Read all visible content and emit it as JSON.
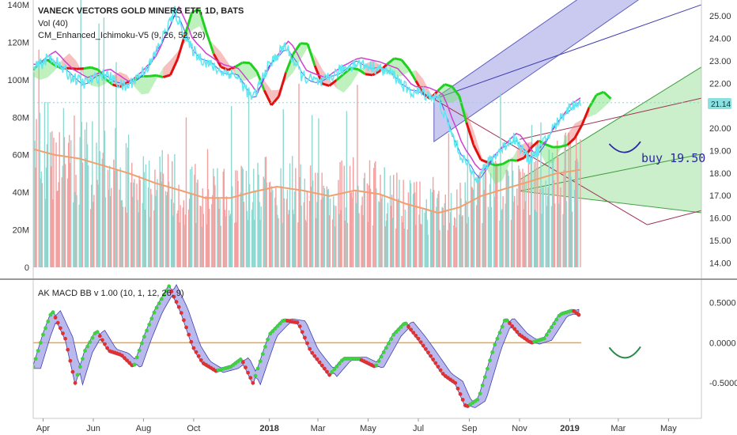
{
  "header": {
    "title": "VANECK VECTORS GOLD MINERS ETF, 1D, BATS",
    "volume_label": "Vol (40)",
    "ichimoku_label": "CM_Enhanced_Ichimoku-V5 (9, 26, 52, 26)",
    "macd_label": "AK MACD BB v 1.00 (10, 1, 12, 26, 9)"
  },
  "annotation": {
    "buy_text": "buy 19.50"
  },
  "last_price_label": "21.14",
  "colors": {
    "volume_red": "#f4a0a0",
    "volume_teal": "#8fd9d2",
    "price_line": "#5ee8f0",
    "vol_ma": "#f0a070",
    "cloud_red": "#f07070",
    "cloud_green": "#70e070",
    "channel_blue": "#b8b8ec",
    "channel_green": "#bdebbd",
    "macd_band": "#a8a8e8",
    "zero_line": "#f4a040",
    "drawing_green": "#2a8a4a"
  },
  "chart_data": [
    {
      "type": "line",
      "title": "VANECK VECTORS GOLD MINERS ETF, 1D, BATS",
      "x_axis": {
        "type": "date",
        "range": [
          "2017-03-20",
          "2019-06-10"
        ],
        "tick_labels": [
          "Apr",
          "Jun",
          "Aug",
          "Oct",
          "2018",
          "Mar",
          "May",
          "Jul",
          "Sep",
          "Nov",
          "2019",
          "Mar",
          "May"
        ],
        "tick_dates": [
          "2017-04-01",
          "2017-06-01",
          "2017-08-01",
          "2017-10-01",
          "2018-01-01",
          "2018-03-01",
          "2018-05-01",
          "2018-07-01",
          "2018-09-01",
          "2018-11-01",
          "2019-01-01",
          "2019-03-01",
          "2019-05-01"
        ]
      },
      "right_axis": {
        "label": "",
        "ylim": [
          13.8,
          25.5
        ],
        "ticks": [
          14.0,
          15.0,
          16.0,
          17.0,
          18.0,
          19.0,
          20.0,
          21.0,
          22.0,
          23.0,
          24.0,
          25.0
        ]
      },
      "left_axis": {
        "label": "",
        "ylim": [
          0,
          140
        ],
        "ticks": [
          0,
          20,
          40,
          60,
          80,
          100,
          120,
          140
        ],
        "tick_labels": [
          "0",
          "20M",
          "40M",
          "60M",
          "80M",
          "100M",
          "120M",
          "140M"
        ]
      },
      "last_price": 21.14,
      "series": [
        {
          "role": "price",
          "style": "line",
          "points": [
            [
              "2017-03-20",
              22.6
            ],
            [
              "2017-04-10",
              23.2
            ],
            [
              "2017-05-01",
              22.4
            ],
            [
              "2017-05-20",
              22.0
            ],
            [
              "2017-06-15",
              22.4
            ],
            [
              "2017-07-10",
              21.8
            ],
            [
              "2017-07-25",
              22.3
            ],
            [
              "2017-08-10",
              22.9
            ],
            [
              "2017-08-25",
              24.1
            ],
            [
              "2017-09-08",
              25.2
            ],
            [
              "2017-09-25",
              23.7
            ],
            [
              "2017-10-10",
              23.1
            ],
            [
              "2017-10-30",
              22.6
            ],
            [
              "2017-11-20",
              22.4
            ],
            [
              "2017-12-12",
              21.3
            ],
            [
              "2017-12-28",
              22.6
            ],
            [
              "2018-01-20",
              23.7
            ],
            [
              "2018-02-10",
              22.3
            ],
            [
              "2018-03-05",
              22.0
            ],
            [
              "2018-03-25",
              22.5
            ],
            [
              "2018-04-15",
              22.9
            ],
            [
              "2018-05-10",
              22.7
            ],
            [
              "2018-06-01",
              22.4
            ],
            [
              "2018-06-20",
              21.6
            ],
            [
              "2018-07-05",
              21.6
            ],
            [
              "2018-07-25",
              21.3
            ],
            [
              "2018-08-10",
              19.8
            ],
            [
              "2018-08-20",
              18.9
            ],
            [
              "2018-09-05",
              18.0
            ],
            [
              "2018-09-12",
              17.8
            ],
            [
              "2018-09-25",
              18.5
            ],
            [
              "2018-10-08",
              19.0
            ],
            [
              "2018-10-25",
              19.6
            ],
            [
              "2018-11-12",
              18.6
            ],
            [
              "2018-11-26",
              19.1
            ],
            [
              "2018-12-10",
              19.9
            ],
            [
              "2018-12-28",
              20.8
            ],
            [
              "2019-01-08",
              21.1
            ],
            [
              "2019-01-14",
              21.2
            ]
          ]
        },
        {
          "role": "volume_ma",
          "style": "line",
          "axis": "left",
          "points": [
            [
              "2017-03-20",
              63
            ],
            [
              "2017-04-15",
              60
            ],
            [
              "2017-05-15",
              58
            ],
            [
              "2017-06-15",
              54
            ],
            [
              "2017-07-15",
              50
            ],
            [
              "2017-08-15",
              45
            ],
            [
              "2017-09-15",
              41
            ],
            [
              "2017-10-15",
              37
            ],
            [
              "2017-11-15",
              37
            ],
            [
              "2017-12-10",
              40
            ],
            [
              "2018-01-10",
              43
            ],
            [
              "2018-02-10",
              41
            ],
            [
              "2018-03-15",
              38
            ],
            [
              "2018-04-15",
              41
            ],
            [
              "2018-05-15",
              39
            ],
            [
              "2018-06-15",
              34
            ],
            [
              "2018-07-10",
              31
            ],
            [
              "2018-07-25",
              29
            ],
            [
              "2018-08-20",
              32
            ],
            [
              "2018-09-15",
              38
            ],
            [
              "2018-10-15",
              42
            ],
            [
              "2018-11-15",
              46
            ],
            [
              "2018-12-15",
              50
            ],
            [
              "2019-01-14",
              52
            ]
          ]
        }
      ]
    },
    {
      "type": "line",
      "title": "AK MACD BB v 1.00 (10, 1, 12, 26, 9)",
      "x_axis": {
        "type": "date",
        "range": [
          "2017-03-20",
          "2019-06-10"
        ]
      },
      "right_axis": {
        "label": "",
        "ylim": [
          -0.92,
          0.72
        ],
        "ticks": [
          -0.5,
          0.0,
          0.5
        ],
        "tick_labels": [
          "-0.5000",
          "0.0000",
          "0.5000"
        ]
      },
      "zero_line": 0.0,
      "series": [
        {
          "role": "macd",
          "style": "dots (green when rising, red when falling)",
          "points": [
            [
              "2017-03-20",
              -0.3
            ],
            [
              "2017-04-01",
              0.1
            ],
            [
              "2017-04-12",
              0.4
            ],
            [
              "2017-04-28",
              0.05
            ],
            [
              "2017-05-10",
              -0.5
            ],
            [
              "2017-05-22",
              -0.1
            ],
            [
              "2017-06-05",
              0.15
            ],
            [
              "2017-06-20",
              -0.1
            ],
            [
              "2017-07-05",
              -0.15
            ],
            [
              "2017-07-20",
              -0.3
            ],
            [
              "2017-08-01",
              0.05
            ],
            [
              "2017-08-15",
              0.4
            ],
            [
              "2017-09-01",
              0.7
            ],
            [
              "2017-09-15",
              0.4
            ],
            [
              "2017-09-30",
              -0.05
            ],
            [
              "2017-10-12",
              -0.25
            ],
            [
              "2017-10-28",
              -0.35
            ],
            [
              "2017-11-15",
              -0.3
            ],
            [
              "2017-11-28",
              -0.2
            ],
            [
              "2017-12-12",
              -0.5
            ],
            [
              "2018-01-01",
              0.1
            ],
            [
              "2018-01-18",
              0.28
            ],
            [
              "2018-02-05",
              0.25
            ],
            [
              "2018-02-20",
              -0.1
            ],
            [
              "2018-03-15",
              -0.4
            ],
            [
              "2018-04-01",
              -0.2
            ],
            [
              "2018-04-20",
              -0.2
            ],
            [
              "2018-05-10",
              -0.3
            ],
            [
              "2018-06-01",
              0.1
            ],
            [
              "2018-06-15",
              0.25
            ],
            [
              "2018-07-01",
              0.05
            ],
            [
              "2018-07-15",
              -0.15
            ],
            [
              "2018-08-01",
              -0.4
            ],
            [
              "2018-08-15",
              -0.5
            ],
            [
              "2018-08-28",
              -0.8
            ],
            [
              "2018-09-12",
              -0.7
            ],
            [
              "2018-10-01",
              -0.05
            ],
            [
              "2018-10-15",
              0.3
            ],
            [
              "2018-11-01",
              0.1
            ],
            [
              "2018-11-15",
              0.0
            ],
            [
              "2018-12-01",
              0.05
            ],
            [
              "2018-12-20",
              0.35
            ],
            [
              "2019-01-05",
              0.4
            ],
            [
              "2019-01-14",
              0.33
            ]
          ]
        }
      ]
    }
  ]
}
